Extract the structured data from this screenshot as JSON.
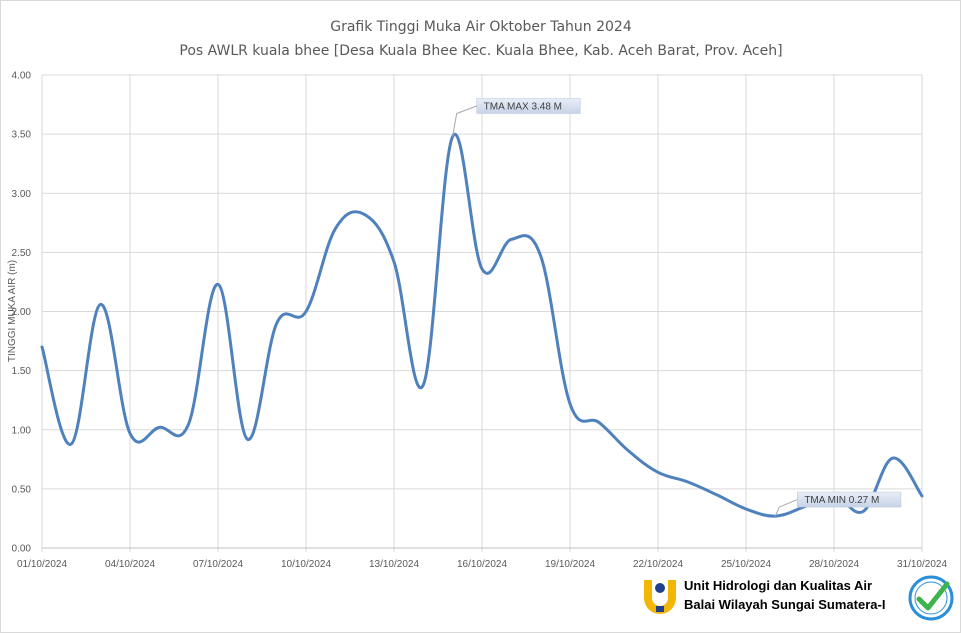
{
  "chart_data": {
    "type": "line",
    "title": "Grafik Tinggi Muka Air Oktober Tahun 2024",
    "subtitle": "Pos AWLR kuala bhee [Desa Kuala Bhee Kec. Kuala Bhee, Kab. Aceh Barat, Prov. Aceh]",
    "xlabel": "",
    "ylabel": "TINGGI MUKA AIR (m)",
    "ylim": [
      0,
      4
    ],
    "yticks": [
      "0.00",
      "0.50",
      "1.00",
      "1.50",
      "2.00",
      "2.50",
      "3.00",
      "3.50",
      "4.00"
    ],
    "xlim_day": [
      1,
      31
    ],
    "xticks": [
      {
        "day": 1,
        "label": "01/10/2024"
      },
      {
        "day": 4,
        "label": "04/10/2024"
      },
      {
        "day": 7,
        "label": "07/10/2024"
      },
      {
        "day": 10,
        "label": "10/10/2024"
      },
      {
        "day": 13,
        "label": "13/10/2024"
      },
      {
        "day": 16,
        "label": "16/10/2024"
      },
      {
        "day": 19,
        "label": "19/10/2024"
      },
      {
        "day": 22,
        "label": "22/10/2024"
      },
      {
        "day": 25,
        "label": "25/10/2024"
      },
      {
        "day": 28,
        "label": "28/10/2024"
      },
      {
        "day": 31,
        "label": "31/10/2024"
      }
    ],
    "grid": {
      "vertical": true,
      "horizontal": true
    },
    "line_color": "#4f81bd",
    "series": [
      {
        "name": "",
        "x": [
          1,
          2,
          3,
          4,
          5,
          6,
          7,
          8,
          9,
          10,
          11,
          12,
          13,
          14,
          15,
          16,
          17,
          18,
          19,
          20,
          21,
          22,
          23,
          24,
          25,
          26,
          27,
          28,
          29,
          30,
          31
        ],
        "values": [
          1.7,
          0.88,
          2.06,
          0.97,
          1.02,
          1.05,
          2.23,
          0.92,
          1.9,
          2.0,
          2.7,
          2.82,
          2.42,
          1.38,
          3.48,
          2.36,
          2.61,
          2.47,
          1.22,
          1.06,
          0.82,
          0.64,
          0.56,
          0.45,
          0.33,
          0.27,
          0.35,
          0.45,
          0.31,
          0.76,
          0.44
        ]
      }
    ],
    "annotations": [
      {
        "text": "TMA MAX  3.48  M",
        "day": 15,
        "value": 3.48
      },
      {
        "text": "TMA MIN  0.27  M",
        "day": 26,
        "value": 0.27
      }
    ]
  },
  "footer": {
    "org_line1": "Unit Hidrologi dan Kualitas Air",
    "org_line2": "Balai Wilayah Sungai Sumatera-I",
    "logo_icon": "pu-logo-icon",
    "badge_icon": "certified-badge-icon",
    "logo_color": "#f2b705",
    "badge_color": "#2a8fd8",
    "check_color": "#3cb44b"
  }
}
